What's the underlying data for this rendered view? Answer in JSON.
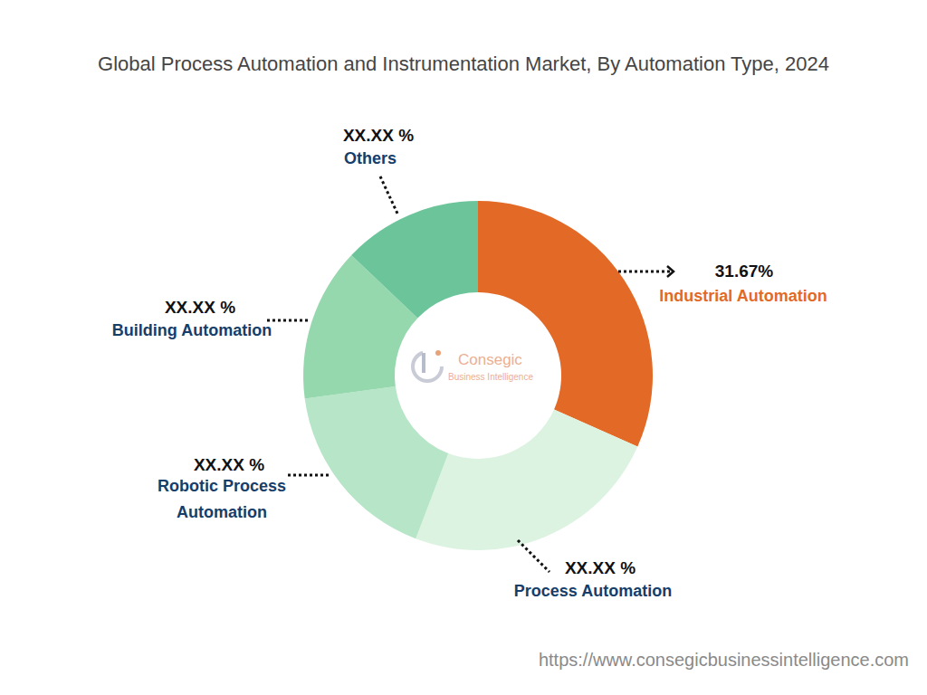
{
  "chart_data": {
    "type": "pie",
    "title": "Global Process Automation and Instrumentation Market, By Automation Type, 2024",
    "categories": [
      "Industrial Automation",
      "Process Automation",
      "Robotic Process Automation",
      "Building Automation",
      "Others"
    ],
    "values": [
      31.67,
      24.13,
      17.1,
      14.2,
      12.9
    ],
    "value_labels": [
      "31.67%",
      "XX.XX %",
      "XX.XX %",
      "XX.XX %",
      "XX.XX %"
    ],
    "colors": [
      "#e36a26",
      "#ddf3e1",
      "#b6e5c7",
      "#96d8ae",
      "#6cc59a"
    ],
    "data_labels": true,
    "annotations": [
      "Consegic",
      "Business Intelligence"
    ],
    "source": "https://www.consegicbusinessintelligence.com"
  }
}
